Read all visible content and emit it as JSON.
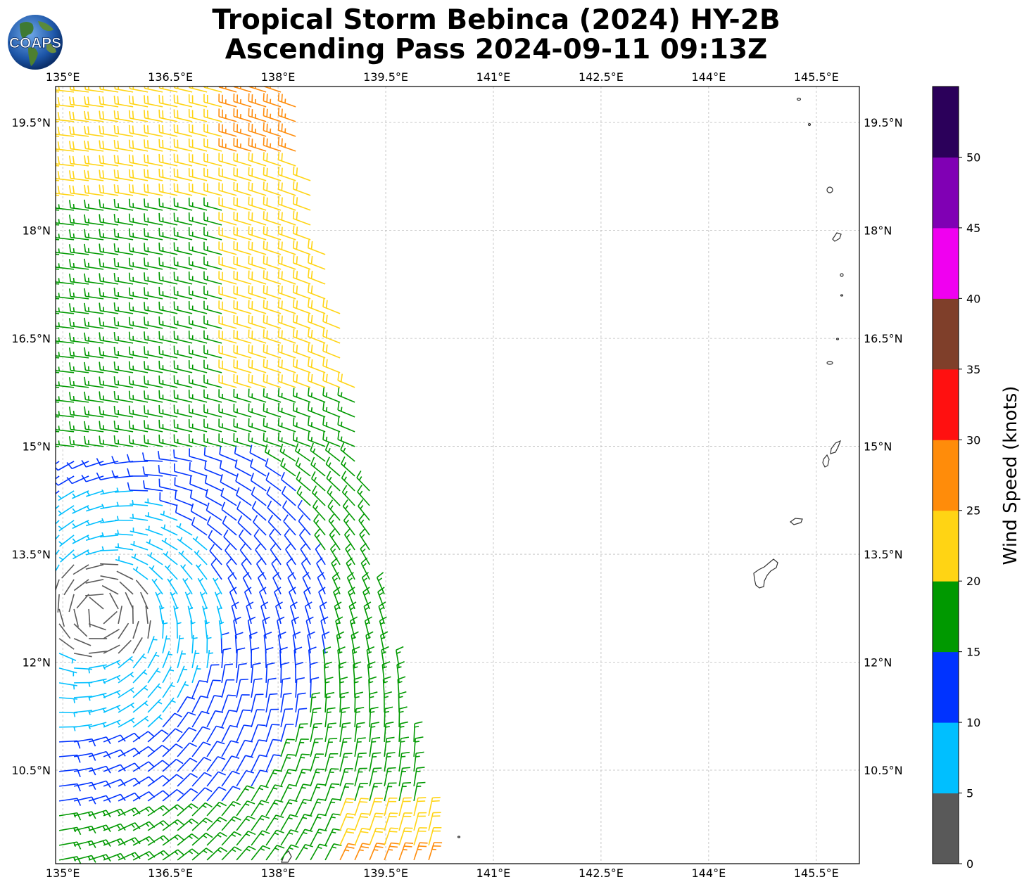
{
  "title": {
    "line1": "Tropical Storm Bebinca (2024) HY-2B",
    "line2": "Ascending Pass 2024-09-11 09:13Z"
  },
  "logo": {
    "text": "COAPS"
  },
  "map": {
    "lon_range": [
      134.9,
      146.1
    ],
    "lat_range": [
      9.2,
      20.0
    ],
    "lon_labels": [
      "135°E",
      "136.5°E",
      "138°E",
      "139.5°E",
      "141°E",
      "142.5°E",
      "144°E",
      "145.5°E"
    ],
    "lat_labels": [
      "19.5°N",
      "18°N",
      "16.5°N",
      "15°N",
      "13.5°N",
      "12°N",
      "10.5°N"
    ],
    "gridlines": true
  },
  "colorbar": {
    "label": "Wind Speed (knots)",
    "ticks": [
      "0",
      "5",
      "10",
      "15",
      "20",
      "25",
      "30",
      "35",
      "40",
      "45",
      "50"
    ],
    "bins": [
      {
        "from": 0,
        "to": 5,
        "color": "#595959"
      },
      {
        "from": 5,
        "to": 10,
        "color": "#00bfff"
      },
      {
        "from": 10,
        "to": 15,
        "color": "#0033ff"
      },
      {
        "from": 15,
        "to": 20,
        "color": "#009900"
      },
      {
        "from": 20,
        "to": 25,
        "color": "#ffd414"
      },
      {
        "from": 25,
        "to": 30,
        "color": "#ff8c0a"
      },
      {
        "from": 30,
        "to": 35,
        "color": "#ff1010"
      },
      {
        "from": 35,
        "to": 40,
        "color": "#7f3f2a"
      },
      {
        "from": 40,
        "to": 45,
        "color": "#f000f0"
      },
      {
        "from": 45,
        "to": 50,
        "color": "#8000b4"
      },
      {
        "from": 50,
        "to": 55,
        "color": "#2b005a"
      }
    ]
  },
  "wind_field": {
    "center_lon": 135.5,
    "center_lat": 12.7,
    "swath_east_edge_lon_at_lat": [
      [
        9.3,
        140.2
      ],
      [
        10.5,
        140.0
      ],
      [
        12.0,
        139.7
      ],
      [
        13.5,
        139.4
      ],
      [
        15.0,
        139.2
      ],
      [
        16.5,
        139.0
      ],
      [
        18.0,
        138.6
      ],
      [
        20.0,
        138.2
      ]
    ]
  }
}
